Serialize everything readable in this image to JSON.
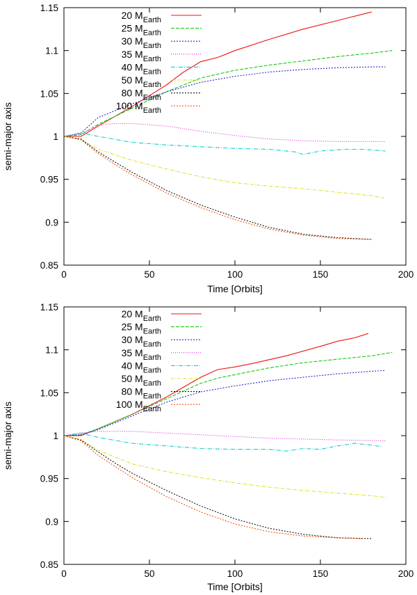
{
  "chart_data": [
    {
      "type": "line",
      "title": "",
      "xlabel": "Time [Orbits]",
      "ylabel": "semi-major axis",
      "xlim": [
        0,
        200
      ],
      "ylim": [
        0.85,
        1.15
      ],
      "xticks": [
        "0",
        "50",
        "100",
        "150",
        "200"
      ],
      "yticks": [
        "0.85",
        "0.9",
        "0.95",
        "1",
        "1.05",
        "1.1",
        "1.15"
      ],
      "legend_position": "top-center",
      "series": [
        {
          "name": "20 M",
          "subscript": "Earth",
          "color": "#ee1111",
          "dash": "none",
          "x": [
            0,
            10,
            20,
            40,
            60,
            70,
            80,
            90,
            100,
            120,
            140,
            160,
            170,
            180
          ],
          "y": [
            1.0,
            1.0,
            1.012,
            1.035,
            1.06,
            1.075,
            1.087,
            1.092,
            1.1,
            1.113,
            1.125,
            1.135,
            1.14,
            1.145
          ]
        },
        {
          "name": "25 M",
          "subscript": "Earth",
          "color": "#11cc11",
          "dash": "5,2",
          "x": [
            0,
            10,
            20,
            40,
            60,
            80,
            100,
            120,
            140,
            160,
            180,
            192
          ],
          "y": [
            1.0,
            1.002,
            1.014,
            1.033,
            1.052,
            1.068,
            1.077,
            1.083,
            1.088,
            1.093,
            1.097,
            1.1
          ]
        },
        {
          "name": "30 M",
          "subscript": "Earth",
          "color": "#2222cc",
          "dash": "2,2",
          "x": [
            0,
            10,
            20,
            40,
            60,
            80,
            100,
            120,
            140,
            160,
            180,
            188
          ],
          "y": [
            1.0,
            1.004,
            1.022,
            1.038,
            1.052,
            1.063,
            1.07,
            1.075,
            1.078,
            1.08,
            1.081,
            1.081
          ]
        },
        {
          "name": "35 M",
          "subscript": "Earth",
          "color": "#dd22dd",
          "dash": "1,2",
          "x": [
            0,
            10,
            20,
            30,
            40,
            60,
            80,
            100,
            120,
            140,
            160,
            188
          ],
          "y": [
            1.0,
            1.003,
            1.013,
            1.015,
            1.015,
            1.012,
            1.006,
            1.001,
            0.997,
            0.995,
            0.994,
            0.994
          ]
        },
        {
          "name": "40 M",
          "subscript": "Earth",
          "color": "#11cccc",
          "dash": "6,2,1,2",
          "x": [
            0,
            10,
            20,
            40,
            60,
            80,
            100,
            120,
            135,
            140,
            150,
            165,
            175,
            188
          ],
          "y": [
            1.0,
            1.004,
            1.0,
            0.993,
            0.99,
            0.988,
            0.986,
            0.985,
            0.982,
            0.979,
            0.983,
            0.985,
            0.985,
            0.983
          ]
        },
        {
          "name": "50 M",
          "subscript": "Earth",
          "color": "#dddd11",
          "dash": "4,2,1,2",
          "x": [
            0,
            10,
            20,
            40,
            60,
            80,
            100,
            120,
            140,
            160,
            180,
            188
          ],
          "y": [
            1.0,
            0.996,
            0.985,
            0.972,
            0.962,
            0.953,
            0.946,
            0.942,
            0.939,
            0.935,
            0.931,
            0.928
          ]
        },
        {
          "name": "80 M",
          "subscript": "Earth",
          "color": "#111111",
          "dash": "2,2",
          "x": [
            0,
            10,
            20,
            30,
            40,
            60,
            80,
            100,
            120,
            140,
            160,
            180
          ],
          "y": [
            1.0,
            0.997,
            0.982,
            0.97,
            0.958,
            0.937,
            0.92,
            0.906,
            0.894,
            0.886,
            0.882,
            0.88
          ]
        },
        {
          "name": "100 M",
          "subscript": "Earth",
          "color": "#ee5511",
          "dash": "2,2",
          "x": [
            0,
            10,
            20,
            30,
            40,
            60,
            80,
            100,
            120,
            140,
            160,
            180
          ],
          "y": [
            1.0,
            0.996,
            0.98,
            0.967,
            0.955,
            0.934,
            0.917,
            0.903,
            0.892,
            0.885,
            0.881,
            0.88
          ]
        }
      ]
    },
    {
      "type": "line",
      "title": "",
      "xlabel": "Time [Orbits]",
      "ylabel": "semi-major axis",
      "xlim": [
        0,
        200
      ],
      "ylim": [
        0.85,
        1.15
      ],
      "xticks": [
        "0",
        "50",
        "100",
        "150",
        "200"
      ],
      "yticks": [
        "0.85",
        "0.9",
        "0.95",
        "1",
        "1.05",
        "1.1",
        "1.15"
      ],
      "legend_position": "top-center",
      "series": [
        {
          "name": "20 M",
          "subscript": "Earth",
          "color": "#ee1111",
          "dash": "none",
          "x": [
            0,
            10,
            20,
            40,
            60,
            80,
            90,
            100,
            110,
            130,
            150,
            160,
            170,
            178
          ],
          "y": [
            1.0,
            1.0,
            1.008,
            1.025,
            1.045,
            1.068,
            1.077,
            1.08,
            1.084,
            1.093,
            1.104,
            1.11,
            1.114,
            1.119
          ]
        },
        {
          "name": "25 M",
          "subscript": "Earth",
          "color": "#11cc11",
          "dash": "5,2",
          "x": [
            0,
            10,
            20,
            40,
            60,
            80,
            90,
            100,
            120,
            140,
            160,
            180,
            192
          ],
          "y": [
            1.0,
            1.001,
            1.008,
            1.025,
            1.043,
            1.061,
            1.067,
            1.071,
            1.079,
            1.085,
            1.089,
            1.093,
            1.097
          ]
        },
        {
          "name": "30 M",
          "subscript": "Earth",
          "color": "#2222cc",
          "dash": "2,2",
          "x": [
            0,
            10,
            20,
            40,
            60,
            80,
            100,
            120,
            140,
            160,
            180,
            188
          ],
          "y": [
            1.0,
            1.001,
            1.007,
            1.023,
            1.039,
            1.051,
            1.058,
            1.064,
            1.068,
            1.072,
            1.075,
            1.076
          ]
        },
        {
          "name": "35 M",
          "subscript": "Earth",
          "color": "#dd22dd",
          "dash": "1,2",
          "x": [
            0,
            10,
            20,
            40,
            60,
            80,
            100,
            120,
            140,
            160,
            188
          ],
          "y": [
            1.0,
            1.003,
            1.005,
            1.005,
            1.003,
            1.001,
            0.999,
            0.997,
            0.996,
            0.995,
            0.994
          ]
        },
        {
          "name": "40 M",
          "subscript": "Earth",
          "color": "#11cccc",
          "dash": "6,2,1,2",
          "x": [
            0,
            10,
            20,
            40,
            60,
            80,
            100,
            120,
            130,
            140,
            150,
            160,
            170,
            180,
            186
          ],
          "y": [
            1.0,
            1.003,
            0.998,
            0.991,
            0.988,
            0.985,
            0.984,
            0.984,
            0.982,
            0.985,
            0.984,
            0.988,
            0.991,
            0.989,
            0.987
          ]
        },
        {
          "name": "50 M",
          "subscript": "Earth",
          "color": "#dddd11",
          "dash": "4,2,1,2",
          "x": [
            0,
            10,
            20,
            40,
            60,
            80,
            100,
            120,
            140,
            160,
            180,
            188
          ],
          "y": [
            1.0,
            0.995,
            0.983,
            0.967,
            0.958,
            0.951,
            0.945,
            0.94,
            0.936,
            0.933,
            0.93,
            0.928
          ]
        },
        {
          "name": "80 M",
          "subscript": "Earth",
          "color": "#111111",
          "dash": "2,2",
          "x": [
            0,
            10,
            20,
            30,
            40,
            60,
            80,
            100,
            120,
            140,
            160,
            180
          ],
          "y": [
            1.0,
            0.995,
            0.981,
            0.968,
            0.956,
            0.936,
            0.918,
            0.903,
            0.892,
            0.885,
            0.881,
            0.88
          ]
        },
        {
          "name": "100 M",
          "subscript": "Earth",
          "color": "#ee5511",
          "dash": "2,2",
          "x": [
            0,
            10,
            20,
            30,
            40,
            60,
            80,
            100,
            120,
            140,
            160,
            175
          ],
          "y": [
            1.0,
            0.994,
            0.977,
            0.964,
            0.951,
            0.929,
            0.911,
            0.897,
            0.888,
            0.883,
            0.881,
            0.88
          ]
        }
      ]
    }
  ]
}
